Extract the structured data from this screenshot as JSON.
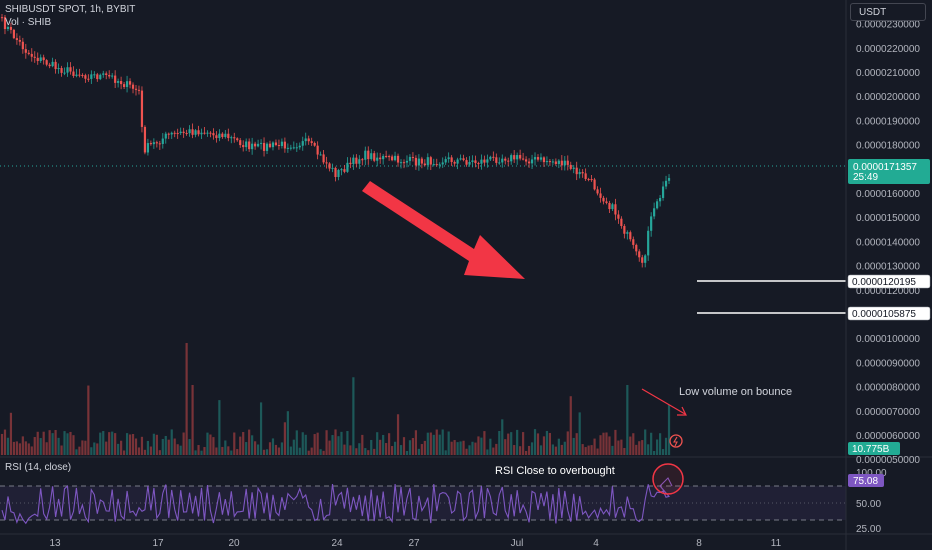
{
  "header": {
    "symbol_line": "SHIBUSDT SPOT, 1h, BYBIT",
    "volume_line": "Vol · SHIB"
  },
  "currency_button": "USDT",
  "price_axis": {
    "ticks": [
      "0.0000230000",
      "0.0000220000",
      "0.0000210000",
      "0.0000200000",
      "0.0000190000",
      "0.0000180000",
      "0.0000170000",
      "0.0000160000",
      "0.0000150000",
      "0.0000140000",
      "0.0000130000",
      "0.0000120000",
      "0.0000110000",
      "0.0000100000",
      "0.0000090000",
      "0.0000080000",
      "0.0000070000",
      "0.0000060000",
      "0.0000050000"
    ],
    "current_price_label": "0.0000171357",
    "countdown": "25:49",
    "level_labels": [
      "0.0000120195",
      "0.0000105875"
    ],
    "volume_label": "10.775B"
  },
  "rsi": {
    "title": "RSI (14, close)",
    "value_label": "75.08",
    "ticks": [
      "100.00",
      "50.00",
      "25.00"
    ]
  },
  "time_axis": [
    "13",
    "17",
    "20",
    "24",
    "27",
    "Jul",
    "4",
    "8",
    "11"
  ],
  "annotations": {
    "volume_note": "Low volume  on bounce",
    "rsi_note": "RSI Close to overbought"
  },
  "colors": {
    "background": "#161a25",
    "up": "#26a69a",
    "down": "#ef5350",
    "arrow": "#f23645",
    "rsi_line": "#7e57c2",
    "price_label_bg": "#22ab94",
    "rsi_label_bg": "#7e57c2"
  },
  "chart_data": {
    "type": "candlestick",
    "x_start": "2024-06-12",
    "x_end": "2024-07-06",
    "y_unit": "USDT",
    "close_path": [
      [
        "2024-06-12",
        2.32e-05
      ],
      [
        "2024-06-13",
        2.18e-05
      ],
      [
        "2024-06-14",
        2.12e-05
      ],
      [
        "2024-06-15",
        2.09e-05
      ],
      [
        "2024-06-16",
        2.08e-05
      ],
      [
        "2024-06-17",
        2.02e-05
      ],
      [
        "2024-06-17",
        1.78e-05
      ],
      [
        "2024-06-18",
        1.84e-05
      ],
      [
        "2024-06-19",
        1.86e-05
      ],
      [
        "2024-06-20",
        1.84e-05
      ],
      [
        "2024-06-21",
        1.79e-05
      ],
      [
        "2024-06-22",
        1.8e-05
      ],
      [
        "2024-06-23",
        1.81e-05
      ],
      [
        "2024-06-24",
        1.68e-05
      ],
      [
        "2024-06-25",
        1.76e-05
      ],
      [
        "2024-06-26",
        1.74e-05
      ],
      [
        "2024-06-27",
        1.73e-05
      ],
      [
        "2024-06-28",
        1.74e-05
      ],
      [
        "2024-06-29",
        1.73e-05
      ],
      [
        "2024-06-30",
        1.75e-05
      ],
      [
        "2024-07-01",
        1.74e-05
      ],
      [
        "2024-07-02",
        1.73e-05
      ],
      [
        "2024-07-03",
        1.66e-05
      ],
      [
        "2024-07-04",
        1.52e-05
      ],
      [
        "2024-07-05",
        1.28e-05
      ],
      [
        "2024-07-05",
        1.45e-05
      ],
      [
        "2024-07-06",
        1.71357e-05
      ]
    ],
    "price_levels": [
      1.20195e-05,
      1.05875e-05
    ],
    "last_price": 1.71357e-05,
    "rsi_last": 75.08,
    "rsi_levels": [
      70,
      50,
      30
    ],
    "volume_last": "10.775B"
  }
}
